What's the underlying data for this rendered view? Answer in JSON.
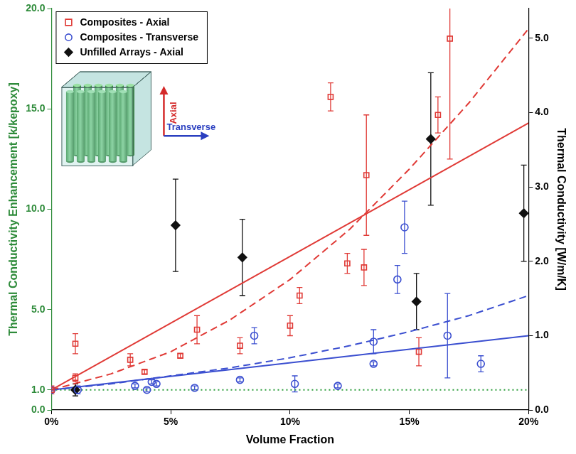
{
  "chart_data": {
    "type": "scatter",
    "x_label": "Volume Fraction",
    "y_label": "Thermal Conductivity Enhancement [k/kepoxy]",
    "y2_label": "Thermal Conductivity [W/m/K]",
    "xlim": [
      0,
      20
    ],
    "xticks": [
      {
        "value": 0,
        "label": "0%"
      },
      {
        "value": 5,
        "label": "5%"
      },
      {
        "value": 10,
        "label": "10%"
      },
      {
        "value": 15,
        "label": "15%"
      },
      {
        "value": 20,
        "label": "20%"
      }
    ],
    "ylim": [
      0,
      20
    ],
    "yticks": [
      {
        "value": 0,
        "label": "0.0"
      },
      {
        "value": 1,
        "label": "1.0"
      },
      {
        "value": 5,
        "label": "5.0"
      },
      {
        "value": 10,
        "label": "10.0"
      },
      {
        "value": 15,
        "label": "15.0"
      },
      {
        "value": 20,
        "label": "20.0"
      }
    ],
    "y2lim": [
      0,
      5.4
    ],
    "y2ticks": [
      {
        "value": 0,
        "label": "0.0"
      },
      {
        "value": 1,
        "label": "1.0"
      },
      {
        "value": 2,
        "label": "2.0"
      },
      {
        "value": 3,
        "label": "3.0"
      },
      {
        "value": 4,
        "label": "4.0"
      },
      {
        "value": 5,
        "label": "5.0"
      }
    ],
    "grid": false,
    "legend": "upper left",
    "annotations": [
      {
        "text": "Axial",
        "color": "#d42a2a"
      },
      {
        "text": "Transverse",
        "color": "#2a3fc0"
      }
    ],
    "series": [
      {
        "name": "Composites - Axial",
        "color": "#e03a36",
        "marker": "square",
        "x": [
          0,
          1,
          1,
          3.3,
          3.9,
          5.4,
          6.1,
          7.9,
          10,
          10.4,
          11.7,
          12.4,
          13.1,
          13.2,
          15.4,
          16.2,
          16.7
        ],
        "values": [
          1.0,
          3.3,
          1.6,
          2.5,
          1.9,
          2.7,
          4.0,
          3.2,
          4.2,
          5.7,
          15.6,
          7.3,
          7.1,
          11.7,
          2.9,
          14.7,
          18.5
        ],
        "error": [
          0.2,
          0.5,
          0.2,
          0.3,
          0.1,
          0.1,
          0.7,
          0.4,
          0.5,
          0.4,
          0.7,
          0.5,
          0.9,
          3.0,
          0.7,
          0.9,
          6.0
        ]
      },
      {
        "name": "Composites - Transverse",
        "color": "#3b4fd0",
        "marker": "circle",
        "x": [
          0,
          1.1,
          3.5,
          4.0,
          4.2,
          4.4,
          6.0,
          7.9,
          8.5,
          10.2,
          12.0,
          13.5,
          13.5,
          14.5,
          14.8,
          16.6,
          18.0
        ],
        "values": [
          1.0,
          1.0,
          1.2,
          1.0,
          1.4,
          1.3,
          1.1,
          1.5,
          3.7,
          1.3,
          1.2,
          2.3,
          3.4,
          6.5,
          9.1,
          3.7,
          2.3
        ],
        "error": [
          0.1,
          0.2,
          0.1,
          0.1,
          0.1,
          0.1,
          0.1,
          0.1,
          0.4,
          0.4,
          0.1,
          0.1,
          0.6,
          0.7,
          1.3,
          2.1,
          0.4
        ]
      },
      {
        "name": "Unfilled Arrays - Axial",
        "color": "#111111",
        "marker": "diamond",
        "x": [
          1.0,
          5.2,
          8.0,
          15.3,
          15.9,
          19.8
        ],
        "values": [
          1.0,
          9.2,
          7.6,
          5.4,
          13.5,
          9.8
        ],
        "error": [
          0.3,
          2.3,
          1.9,
          1.4,
          3.3,
          2.4
        ]
      },
      {
        "type": "line",
        "color": "#e03a36",
        "line_style": "solid",
        "x": [
          0,
          20
        ],
        "values": [
          1.0,
          14.3
        ]
      },
      {
        "type": "line",
        "color": "#e03a36",
        "line_style": "dashed",
        "x": [
          0,
          2.5,
          5,
          7.5,
          10,
          12.5,
          15,
          17.5,
          20
        ],
        "values": [
          1.0,
          1.8,
          2.9,
          4.5,
          6.5,
          9.0,
          12.0,
          15.3,
          19.0
        ]
      },
      {
        "type": "line",
        "color": "#3b4fd0",
        "line_style": "solid",
        "x": [
          0,
          20
        ],
        "values": [
          1.0,
          3.7
        ]
      },
      {
        "type": "line",
        "color": "#3b4fd0",
        "line_style": "dashed",
        "x": [
          0,
          2.5,
          5,
          7.5,
          10,
          12.5,
          15,
          17.5,
          20
        ],
        "values": [
          1.0,
          1.3,
          1.7,
          2.1,
          2.6,
          3.2,
          3.9,
          4.7,
          5.7
        ]
      },
      {
        "type": "line",
        "color": "#2e9e3e",
        "line_style": "dotted",
        "x": [
          0,
          20
        ],
        "values": [
          1.0,
          1.0
        ]
      }
    ]
  }
}
